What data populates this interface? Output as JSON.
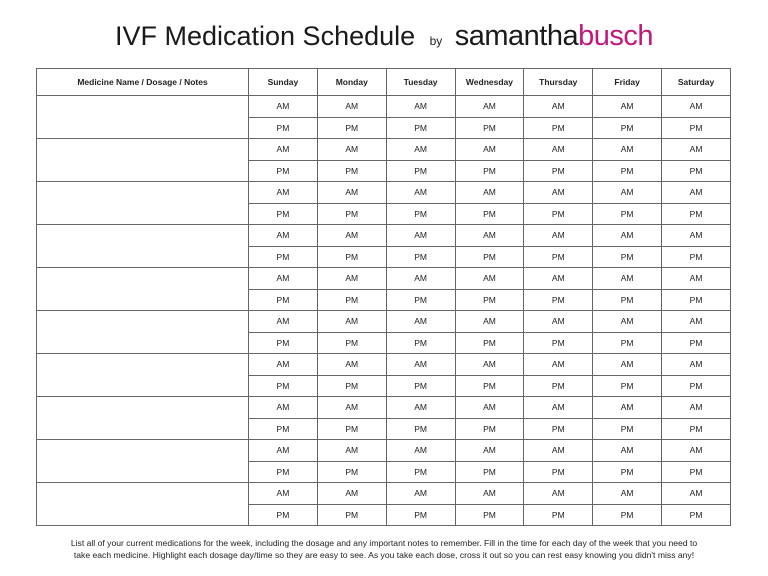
{
  "header": {
    "title": "IVF Medication Schedule",
    "by": "by",
    "brand_first": "samantha",
    "brand_second": "busch"
  },
  "table": {
    "columns": [
      "Medicine Name / Dosage / Notes",
      "Sunday",
      "Monday",
      "Tuesday",
      "Wednesday",
      "Thursday",
      "Friday",
      "Saturday"
    ],
    "rows": [
      [
        "AM",
        "AM",
        "AM",
        "AM",
        "AM",
        "AM",
        "AM"
      ],
      [
        "PM",
        "PM",
        "PM",
        "PM",
        "PM",
        "PM",
        "PM"
      ],
      [
        "AM",
        "AM",
        "AM",
        "AM",
        "AM",
        "AM",
        "AM"
      ],
      [
        "PM",
        "PM",
        "PM",
        "PM",
        "PM",
        "PM",
        "PM"
      ],
      [
        "AM",
        "AM",
        "AM",
        "AM",
        "AM",
        "AM",
        "AM"
      ],
      [
        "PM",
        "PM",
        "PM",
        "PM",
        "PM",
        "PM",
        "PM"
      ],
      [
        "AM",
        "AM",
        "AM",
        "AM",
        "AM",
        "AM",
        "AM"
      ],
      [
        "PM",
        "PM",
        "PM",
        "PM",
        "PM",
        "PM",
        "PM"
      ],
      [
        "AM",
        "AM",
        "AM",
        "AM",
        "AM",
        "AM",
        "AM"
      ],
      [
        "PM",
        "PM",
        "PM",
        "PM",
        "PM",
        "PM",
        "PM"
      ],
      [
        "AM",
        "AM",
        "AM",
        "AM",
        "AM",
        "AM",
        "AM"
      ],
      [
        "PM",
        "PM",
        "PM",
        "PM",
        "PM",
        "PM",
        "PM"
      ],
      [
        "AM",
        "AM",
        "AM",
        "AM",
        "AM",
        "AM",
        "AM"
      ],
      [
        "PM",
        "PM",
        "PM",
        "PM",
        "PM",
        "PM",
        "PM"
      ],
      [
        "AM",
        "AM",
        "AM",
        "AM",
        "AM",
        "AM",
        "AM"
      ],
      [
        "PM",
        "PM",
        "PM",
        "PM",
        "PM",
        "PM",
        "PM"
      ],
      [
        "AM",
        "AM",
        "AM",
        "AM",
        "AM",
        "AM",
        "AM"
      ],
      [
        "PM",
        "PM",
        "PM",
        "PM",
        "PM",
        "PM",
        "PM"
      ],
      [
        "AM",
        "AM",
        "AM",
        "AM",
        "AM",
        "AM",
        "AM"
      ],
      [
        "PM",
        "PM",
        "PM",
        "PM",
        "PM",
        "PM",
        "PM"
      ]
    ]
  },
  "footer": [
    "List all of your current medications for the week, including the dosage and any important notes to remember.  Fill in the time for each day of the week that you need to",
    "take each medicine.  Highlight each dosage day/time so they are easy to see.  As you take each dose, cross it out so you can rest easy knowing you didn't miss any!"
  ]
}
